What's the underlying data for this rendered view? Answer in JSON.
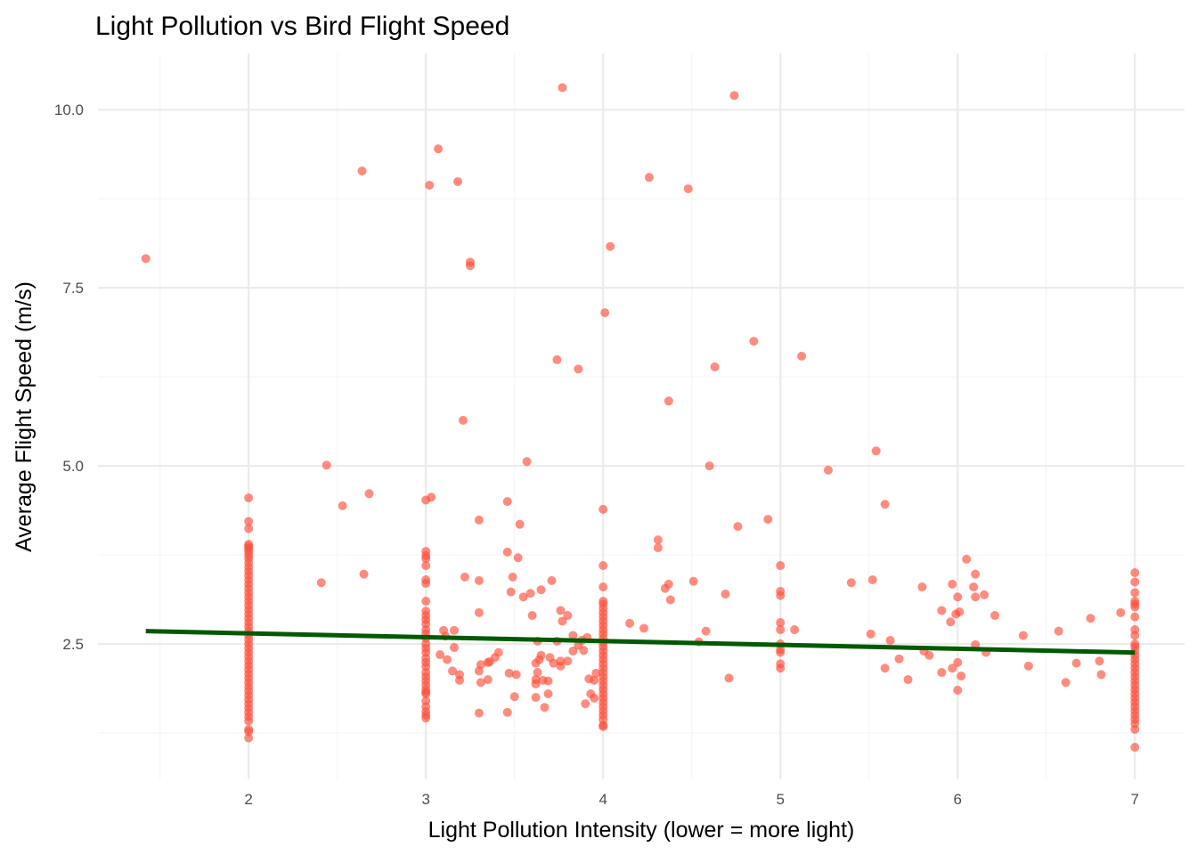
{
  "chart_data": {
    "type": "scatter",
    "title": "Light Pollution vs Bird Flight Speed",
    "xlabel": "Light Pollution Intensity (lower = more light)",
    "ylabel": "Average Flight Speed (m/s)",
    "xlim": [
      1.15,
      7.28
    ],
    "ylim": [
      0.6,
      10.79
    ],
    "x_ticks": [
      2,
      3,
      4,
      5,
      6,
      7
    ],
    "x_tick_labels": [
      "2",
      "3",
      "4",
      "5",
      "6",
      "7"
    ],
    "y_ticks": [
      2.5,
      5.0,
      7.5,
      10.0
    ],
    "y_tick_labels": [
      "2.5",
      "5.0",
      "7.5",
      "10.0"
    ],
    "x_minor_ticks": [
      1.5,
      2.5,
      3.5,
      4.5,
      5.5,
      6.5
    ],
    "y_minor_ticks": [
      1.25,
      3.75,
      6.25,
      8.75
    ],
    "grid": true,
    "legend": "none",
    "colors": {
      "points": "#FF4F3A",
      "trend_line": "#005A00",
      "grid_major": "#EBEBEB",
      "grid_minor": "#F5F5F5"
    },
    "trend_line": {
      "intercept": 2.757,
      "slope": -0.054,
      "x_range": [
        1.42,
        7
      ]
    },
    "points": [
      [
        1.42,
        7.91
      ],
      [
        3.77,
        10.31
      ],
      [
        4.74,
        10.2
      ],
      [
        3.07,
        9.45
      ],
      [
        2.64,
        9.14
      ],
      [
        4.26,
        9.05
      ],
      [
        3.02,
        8.94
      ],
      [
        3.18,
        8.99
      ],
      [
        4.48,
        8.89
      ],
      [
        4.04,
        8.08
      ],
      [
        3.25,
        7.86
      ],
      [
        3.25,
        7.81
      ],
      [
        4.01,
        7.15
      ],
      [
        4.85,
        6.75
      ],
      [
        5.12,
        6.54
      ],
      [
        3.74,
        6.49
      ],
      [
        3.86,
        6.36
      ],
      [
        4.63,
        6.39
      ],
      [
        4.37,
        5.91
      ],
      [
        3.21,
        5.64
      ],
      [
        5.54,
        5.21
      ],
      [
        3.57,
        5.06
      ],
      [
        2.44,
        5.01
      ],
      [
        4.6,
        5.0
      ],
      [
        5.27,
        4.94
      ],
      [
        2.68,
        4.61
      ],
      [
        3.03,
        4.56
      ],
      [
        3.0,
        4.52
      ],
      [
        3.46,
        4.5
      ],
      [
        2.53,
        4.44
      ],
      [
        5.59,
        4.46
      ],
      [
        4.0,
        4.39
      ],
      [
        4.93,
        4.25
      ],
      [
        3.3,
        4.24
      ],
      [
        3.53,
        4.18
      ],
      [
        4.76,
        4.15
      ],
      [
        4.31,
        3.96
      ],
      [
        4.31,
        3.85
      ],
      [
        3.46,
        3.79
      ],
      [
        3.52,
        3.71
      ],
      [
        6.05,
        3.69
      ],
      [
        2.65,
        3.48
      ],
      [
        3.22,
        3.44
      ],
      [
        3.49,
        3.44
      ],
      [
        2.41,
        3.36
      ],
      [
        3.3,
        3.39
      ],
      [
        3.71,
        3.39
      ],
      [
        4.51,
        3.38
      ],
      [
        5.4,
        3.36
      ],
      [
        5.52,
        3.4
      ],
      [
        6.1,
        3.48
      ],
      [
        5.97,
        3.34
      ],
      [
        5.8,
        3.3
      ],
      [
        4.37,
        3.34
      ],
      [
        4.35,
        3.28
      ],
      [
        3.65,
        3.26
      ],
      [
        6.09,
        3.3
      ],
      [
        3.48,
        3.23
      ],
      [
        3.59,
        3.21
      ],
      [
        4.69,
        3.2
      ],
      [
        6.15,
        3.19
      ],
      [
        6.1,
        3.16
      ],
      [
        6.0,
        3.16
      ],
      [
        4.38,
        3.12
      ],
      [
        3.55,
        3.16
      ],
      [
        5.91,
        2.97
      ],
      [
        6.01,
        2.95
      ],
      [
        5.99,
        2.92
      ],
      [
        3.76,
        2.97
      ],
      [
        3.3,
        2.94
      ],
      [
        3.6,
        2.9
      ],
      [
        6.21,
        2.9
      ],
      [
        3.8,
        2.9
      ],
      [
        6.75,
        2.86
      ],
      [
        3.77,
        2.82
      ],
      [
        6.92,
        2.94
      ],
      [
        5.96,
        2.81
      ],
      [
        4.15,
        2.79
      ],
      [
        4.23,
        2.72
      ],
      [
        5.08,
        2.7
      ],
      [
        3.1,
        2.69
      ],
      [
        3.16,
        2.69
      ],
      [
        4.58,
        2.68
      ],
      [
        6.57,
        2.68
      ],
      [
        3.11,
        2.61
      ],
      [
        3.83,
        2.62
      ],
      [
        6.37,
        2.62
      ],
      [
        5.51,
        2.64
      ],
      [
        3.91,
        2.59
      ],
      [
        3.88,
        2.55
      ],
      [
        5.62,
        2.55
      ],
      [
        3.63,
        2.54
      ],
      [
        3.74,
        2.54
      ],
      [
        4.54,
        2.53
      ],
      [
        6.1,
        2.49
      ],
      [
        3.16,
        2.45
      ],
      [
        3.86,
        2.48
      ],
      [
        3.83,
        2.4
      ],
      [
        3.89,
        2.41
      ],
      [
        5.81,
        2.4
      ],
      [
        5.84,
        2.34
      ],
      [
        6.16,
        2.38
      ],
      [
        3.08,
        2.35
      ],
      [
        3.41,
        2.38
      ],
      [
        3.39,
        2.31
      ],
      [
        3.65,
        2.34
      ],
      [
        3.7,
        2.31
      ],
      [
        5.67,
        2.29
      ],
      [
        3.64,
        2.28
      ],
      [
        3.76,
        2.26
      ],
      [
        3.8,
        2.26
      ],
      [
        6.8,
        2.26
      ],
      [
        3.12,
        2.28
      ],
      [
        3.35,
        2.24
      ],
      [
        6.67,
        2.23
      ],
      [
        3.62,
        2.23
      ],
      [
        3.72,
        2.23
      ],
      [
        3.36,
        2.25
      ],
      [
        3.31,
        2.21
      ],
      [
        6.0,
        2.24
      ],
      [
        6.4,
        2.19
      ],
      [
        3.76,
        2.19
      ],
      [
        5.59,
        2.16
      ],
      [
        5.97,
        2.16
      ],
      [
        3.15,
        2.12
      ],
      [
        3.3,
        2.12
      ],
      [
        5.91,
        2.1
      ],
      [
        3.47,
        2.09
      ],
      [
        3.51,
        2.07
      ],
      [
        3.19,
        2.07
      ],
      [
        3.63,
        2.1
      ],
      [
        3.96,
        2.09
      ],
      [
        6.81,
        2.07
      ],
      [
        6.02,
        2.05
      ],
      [
        3.19,
        1.99
      ],
      [
        3.35,
        2.0
      ],
      [
        3.62,
        2.0
      ],
      [
        3.66,
        1.99
      ],
      [
        3.92,
        2.01
      ],
      [
        3.95,
        1.99
      ],
      [
        4.71,
        2.02
      ],
      [
        5.72,
        2.0
      ],
      [
        3.31,
        1.96
      ],
      [
        3.69,
        1.98
      ],
      [
        6.61,
        1.96
      ],
      [
        3.62,
        1.94
      ],
      [
        6.0,
        1.85
      ],
      [
        3.69,
        1.8
      ],
      [
        3.93,
        1.8
      ],
      [
        3.5,
        1.76
      ],
      [
        3.62,
        1.75
      ],
      [
        3.95,
        1.74
      ],
      [
        3.9,
        1.66
      ],
      [
        3.67,
        1.61
      ],
      [
        3.46,
        1.54
      ],
      [
        3.3,
        1.53
      ]
    ],
    "stacked_columns": [
      {
        "x": 2,
        "y": [
          4.55,
          4.22,
          4.12,
          3.9,
          3.87,
          3.84,
          3.8,
          3.75,
          3.7,
          3.64,
          3.58,
          3.52,
          3.46,
          3.4,
          3.34,
          3.28,
          3.22,
          3.16,
          3.1,
          3.04,
          2.98,
          2.92,
          2.86,
          2.8,
          2.74,
          2.68,
          2.62,
          2.56,
          2.5,
          2.44,
          2.38,
          2.32,
          2.26,
          2.2,
          2.14,
          2.08,
          2.02,
          1.96,
          1.9,
          1.84,
          1.78,
          1.72,
          1.66,
          1.6,
          1.54,
          1.48,
          1.42,
          1.3,
          1.27,
          1.18
        ]
      },
      {
        "x": 3,
        "y": [
          3.8,
          3.74,
          3.7,
          3.6,
          3.4,
          3.35,
          3.1,
          2.96,
          2.9,
          2.84,
          2.78,
          2.7,
          2.64,
          2.58,
          2.5,
          2.44,
          2.38,
          2.3,
          2.24,
          2.18,
          2.1,
          2.04,
          1.98,
          1.92,
          1.86,
          1.82,
          1.8,
          1.7,
          1.62,
          1.55,
          1.5,
          1.46
        ]
      },
      {
        "x": 4,
        "y": [
          3.6,
          3.3,
          3.1,
          3.06,
          3.0,
          2.94,
          2.88,
          2.82,
          2.76,
          2.7,
          2.64,
          2.58,
          2.52,
          2.46,
          2.4,
          2.34,
          2.28,
          2.22,
          2.16,
          2.1,
          2.04,
          1.98,
          1.92,
          1.86,
          1.8,
          1.74,
          1.68,
          1.62,
          1.56,
          1.5,
          1.44,
          1.36,
          1.34
        ]
      },
      {
        "x": 5,
        "y": [
          3.6,
          3.24,
          3.18,
          2.8,
          2.7,
          2.5,
          2.42,
          2.38,
          2.22,
          2.16
        ]
      },
      {
        "x": 7,
        "y": [
          3.5,
          3.37,
          3.22,
          3.1,
          3.06,
          3.02,
          2.88,
          2.7,
          2.62,
          2.5,
          2.46,
          2.4,
          2.34,
          2.28,
          2.22,
          2.16,
          2.1,
          2.04,
          1.98,
          1.92,
          1.86,
          1.8,
          1.74,
          1.68,
          1.62,
          1.56,
          1.5,
          1.44,
          1.38,
          1.3,
          1.05
        ]
      }
    ]
  }
}
